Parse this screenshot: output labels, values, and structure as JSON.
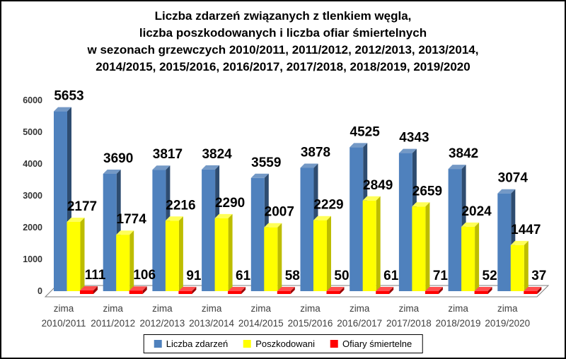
{
  "title": {
    "lines": [
      "Liczba zdarzeń związanych z tlenkiem węgla,",
      "liczba poszkodowanych i liczba ofiar śmiertelnych",
      "w sezonach grzewczych 2010/2011, 2011/2012, 2012/2013, 2013/2014,",
      "2014/2015, 2015/2016, 2016/2017, 2017/2018, 2018/2019, 2019/2020"
    ]
  },
  "chart_data": {
    "type": "bar",
    "title": "Liczba zdarzeń związanych z tlenkiem węgla, liczba poszkodowanych i liczba ofiar śmiertelnych w sezonach grzewczych 2010/2011, 2011/2012, 2012/2013, 2013/2014, 2014/2015, 2015/2016, 2016/2017, 2017/2018, 2018/2019, 2019/2020",
    "style": "3d-clustered-column",
    "categories": [
      "zima 2010/2011",
      "zima 2011/2012",
      "zima 2012/2013",
      "zima 2013/2014",
      "zima 2014/2015",
      "zima 2015/2016",
      "zima 2016/2017",
      "zima 2017/2018",
      "zima 2018/2019",
      "zima 2019/2020"
    ],
    "series": [
      {
        "name": "Liczba zdarzeń",
        "values": [
          5653,
          3690,
          3817,
          3824,
          3559,
          3878,
          4525,
          4343,
          3842,
          3074
        ],
        "colors": {
          "face": "#4f81bd",
          "top": "#7499c6",
          "side": "#2e4c70"
        }
      },
      {
        "name": "Poszkodowani",
        "values": [
          2177,
          1774,
          2216,
          2290,
          2007,
          2229,
          2849,
          2659,
          2024,
          1447
        ],
        "colors": {
          "face": "#ffff00",
          "top": "#ffff59",
          "side": "#bdbd00"
        }
      },
      {
        "name": "Ofiary śmiertelne",
        "values": [
          111,
          106,
          91,
          61,
          58,
          50,
          61,
          71,
          52,
          37
        ],
        "colors": {
          "face": "#ff0000",
          "top": "#ff4d4d",
          "side": "#990000"
        }
      }
    ],
    "xlabel": "",
    "ylabel": "",
    "ylim": [
      0,
      6000
    ],
    "ytick_step": 1000,
    "yticks": [
      0,
      1000,
      2000,
      3000,
      4000,
      5000,
      6000
    ],
    "grid": false,
    "data_labels": true,
    "legend_position": "bottom",
    "axis_text_color": "#333333",
    "floor_stroke_color": "#7f7f7f"
  }
}
